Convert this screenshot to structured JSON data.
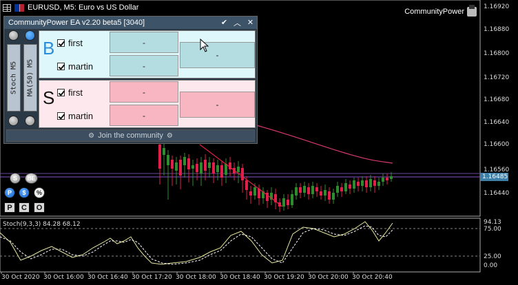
{
  "chart": {
    "title": "EURUSD, M5:  Euro vs US Dollar",
    "brand": "CommunityPower",
    "price_labels": [
      "1.16920",
      "1.16880",
      "1.16800",
      "1.16760",
      "1.16720",
      "1.16680",
      "1.16640",
      "1.16600",
      "1.16560",
      "1.16520",
      "1.16485",
      "1.16440",
      "1.16400"
    ],
    "current_price": "1.16485",
    "stoch_label": "Stoch(9,3,3) 84.28 68.12",
    "stoch_axis": [
      "94.13",
      "75.00",
      "25.00",
      "0.00"
    ],
    "time_labels": [
      "30 Oct 2020",
      "30 Oct 16:00",
      "30 Oct 16:40",
      "30 Oct 17:20",
      "30 Oct 18:00",
      "30 Oct 18:40",
      "30 Oct 19:20",
      "30 Oct 20:00",
      "30 Oct 20:40"
    ],
    "colors": {
      "bull": "#2e8b2e",
      "bear": "#e0204a",
      "ma": "#d63a6a",
      "stoch_main": "#e8e8a0",
      "stoch_signal": "#ffffff",
      "price_line": "#8855cc"
    }
  },
  "panel": {
    "title": "CommunityPower EA v2.20 beta5 [3040]",
    "left_indicators": {
      "stoch": "Stoch M5",
      "ma": "MA(50) M5"
    },
    "buy": {
      "letter": "B",
      "rows": [
        {
          "label": "first",
          "value": "-"
        },
        {
          "label": "martin",
          "value": "-"
        }
      ],
      "total": "-"
    },
    "sell": {
      "letter": "S",
      "rows": [
        {
          "label": "first",
          "value": "-"
        },
        {
          "label": "martin",
          "value": "-"
        }
      ],
      "total": "-"
    },
    "join": "Join the community"
  },
  "controls": {
    "s": "S",
    "be": "BE",
    "p_circle": "P",
    "dollar": "$",
    "percent": "%",
    "p_square": "P",
    "c_square": "C",
    "o_square": "O"
  }
}
